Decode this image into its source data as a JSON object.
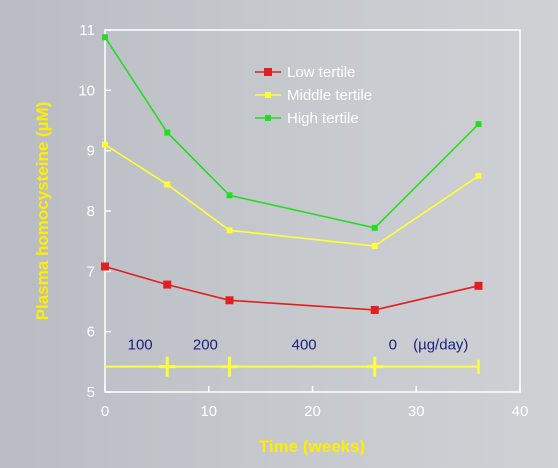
{
  "chart_data": {
    "type": "line",
    "title": "",
    "xlabel": "Time (weeks)",
    "ylabel": "Plasma homocysteine (µM)",
    "xlim": [
      0,
      40
    ],
    "ylim": [
      5,
      11
    ],
    "xticks": [
      "0",
      "10",
      "20",
      "30",
      "40"
    ],
    "yticks": [
      "5",
      "6",
      "7",
      "8",
      "9",
      "10",
      "11"
    ],
    "x": [
      0,
      6,
      12,
      26,
      36
    ],
    "series": [
      {
        "name": "Low tertile",
        "color": "#e02020",
        "marker": "square",
        "values": [
          7.08,
          6.78,
          6.52,
          6.36,
          6.76
        ]
      },
      {
        "name": "Middle tertile",
        "color": "#ffff33",
        "marker": "dot",
        "values": [
          9.1,
          8.44,
          7.68,
          7.42,
          8.58
        ]
      },
      {
        "name": "High tertile",
        "color": "#22dd22",
        "marker": "dot",
        "values": [
          10.88,
          9.3,
          8.26,
          7.72,
          9.44
        ]
      }
    ],
    "legend_position": "top-center",
    "grid": false,
    "dose_annotation": {
      "y": 5.42,
      "color": "#ffff33",
      "cross_at_x": [
        6,
        12,
        26
      ],
      "end_x": [
        0,
        36
      ],
      "labels": [
        "100",
        "200",
        "400",
        "0",
        "(µg/day)"
      ]
    }
  }
}
